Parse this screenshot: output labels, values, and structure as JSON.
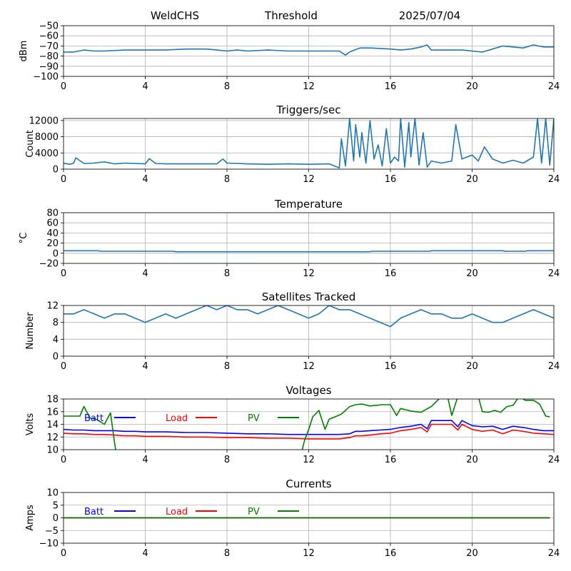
{
  "header": {
    "site": "WeldCHS",
    "mode": "Threshold",
    "date": "2025/07/04"
  },
  "chart_data": [
    {
      "type": "line",
      "title": "",
      "ylabel": "dBm",
      "xlim": [
        0,
        24
      ],
      "xticks": [
        0,
        4,
        8,
        12,
        16,
        20,
        24
      ],
      "ylim": [
        -100,
        -50
      ],
      "yticks": [
        -100,
        -90,
        -80,
        -70,
        -60,
        -50
      ],
      "grid": true,
      "series": [
        {
          "color": "#1f77b4",
          "x": [
            0,
            0.5,
            1,
            1.5,
            2,
            3,
            4,
            5,
            6,
            7,
            7.5,
            8,
            8.5,
            9,
            10,
            11,
            12,
            13,
            13.5,
            13.8,
            14,
            14.5,
            15,
            16,
            16.5,
            17,
            17.5,
            17.8,
            18,
            19,
            19.5,
            20,
            20.5,
            21,
            21.5,
            22,
            22.5,
            23,
            23.5,
            24
          ],
          "y": [
            -76,
            -76,
            -74,
            -75,
            -75,
            -74,
            -74,
            -74,
            -73,
            -73,
            -74,
            -75,
            -74,
            -75,
            -74,
            -75,
            -75,
            -75,
            -75,
            -79,
            -76,
            -72,
            -72,
            -73,
            -74,
            -73,
            -71,
            -69,
            -74,
            -74,
            -74,
            -75,
            -76,
            -73,
            -70,
            -71,
            -72,
            -69,
            -71,
            -71
          ]
        }
      ]
    },
    {
      "type": "line",
      "title": "Triggers/sec",
      "ylabel": "Count",
      "xlim": [
        0,
        24
      ],
      "xticks": [
        0,
        4,
        8,
        12,
        16,
        20,
        24
      ],
      "ylim": [
        0,
        12500
      ],
      "yticks": [
        0,
        4000,
        8000,
        12000
      ],
      "grid": true,
      "series": [
        {
          "color": "#1f77b4",
          "x": [
            0,
            0.3,
            0.5,
            0.6,
            1,
            1.5,
            2,
            2.5,
            3,
            3.5,
            4,
            4.2,
            4.5,
            5,
            6,
            7,
            7.5,
            7.8,
            8,
            8.5,
            9,
            10,
            11,
            12,
            13,
            13.5,
            13.6,
            13.8,
            14,
            14.2,
            14.3,
            14.5,
            14.6,
            14.8,
            15,
            15.2,
            15.4,
            15.6,
            15.8,
            16,
            16.2,
            16.4,
            16.5,
            16.7,
            16.9,
            17,
            17.2,
            17.4,
            17.6,
            17.8,
            18,
            18.5,
            19,
            19.2,
            19.5,
            20,
            20.3,
            20.6,
            21,
            21.5,
            22,
            22.5,
            23,
            23.2,
            23.4,
            23.6,
            23.8,
            24
          ],
          "y": [
            1500,
            1200,
            1500,
            2800,
            1400,
            1500,
            1800,
            1300,
            1500,
            1400,
            1300,
            2600,
            1400,
            1300,
            1300,
            1300,
            1300,
            2500,
            1500,
            1400,
            1300,
            1200,
            1300,
            1200,
            1300,
            300,
            7500,
            800,
            12500,
            2000,
            11000,
            3000,
            9000,
            1500,
            12000,
            2500,
            6000,
            800,
            10000,
            1500,
            3000,
            2000,
            12500,
            500,
            11500,
            3000,
            12500,
            1000,
            9000,
            500,
            2000,
            1500,
            2000,
            11000,
            2500,
            3500,
            2000,
            5500,
            2500,
            1500,
            2200,
            1500,
            3000,
            12500,
            1500,
            12500,
            1000,
            12500
          ]
        }
      ]
    },
    {
      "type": "line",
      "title": "Temperature",
      "ylabel": "°C",
      "xlim": [
        0,
        24
      ],
      "xticks": [
        0,
        4,
        8,
        12,
        16,
        20,
        24
      ],
      "ylim": [
        -20,
        80
      ],
      "yticks": [
        -20,
        0,
        20,
        40,
        60,
        80
      ],
      "grid": true,
      "series": [
        {
          "color": "#1f77b4",
          "x": [
            0,
            1.7,
            1.8,
            5.4,
            5.5,
            15,
            15.1,
            17.9,
            18,
            21.5,
            21.6,
            22.6,
            22.7,
            24
          ],
          "y": [
            5,
            5,
            4,
            4,
            3,
            3,
            4,
            4,
            5,
            5,
            4,
            4,
            5,
            5
          ]
        }
      ]
    },
    {
      "type": "line",
      "title": "Satellites Tracked",
      "ylabel": "Number",
      "xlim": [
        0,
        24
      ],
      "xticks": [
        0,
        4,
        8,
        12,
        16,
        20,
        24
      ],
      "ylim": [
        0,
        12
      ],
      "yticks": [
        0,
        4,
        8,
        12
      ],
      "grid": true,
      "series": [
        {
          "color": "#1f77b4",
          "x": [
            0,
            0.5,
            1,
            1.5,
            2,
            2.5,
            3,
            3.5,
            4,
            4.5,
            5,
            5.5,
            6,
            6.5,
            7,
            7.5,
            8,
            8.5,
            9,
            9.5,
            10,
            10.5,
            11,
            11.5,
            12,
            12.5,
            13,
            13.5,
            14,
            14.5,
            15,
            15.5,
            16,
            16.5,
            17,
            17.5,
            18,
            18.5,
            19,
            19.5,
            20,
            20.5,
            21,
            21.5,
            22,
            22.5,
            23,
            23.5,
            24
          ],
          "y": [
            10,
            10,
            11,
            10,
            9,
            10,
            10,
            9,
            8,
            9,
            10,
            9,
            10,
            11,
            12,
            11,
            12,
            11,
            11,
            10,
            11,
            12,
            11,
            10,
            9,
            10,
            12,
            11,
            11,
            10,
            9,
            8,
            7,
            9,
            10,
            11,
            10,
            10,
            9,
            9,
            10,
            9,
            8,
            8,
            9,
            10,
            11,
            10,
            9
          ]
        }
      ]
    },
    {
      "type": "line",
      "title": "Voltages",
      "ylabel": "Volts",
      "xlim": [
        0,
        24
      ],
      "xticks": [
        0,
        4,
        8,
        12,
        16,
        20,
        24
      ],
      "ylim": [
        10,
        18
      ],
      "yticks": [
        10,
        12,
        14,
        16,
        18
      ],
      "grid": true,
      "legend": {
        "placement": "upper-left",
        "orientation": "horizontal"
      },
      "series": [
        {
          "name": "Batt",
          "color": "#0000ff",
          "x": [
            0,
            0.5,
            1,
            1.5,
            2,
            2.5,
            3,
            3.5,
            4,
            5,
            6,
            7,
            8,
            9,
            10,
            11,
            12,
            13,
            13.5,
            14,
            14.3,
            14.6,
            15,
            15.5,
            16,
            16.5,
            17,
            17.5,
            17.8,
            18,
            18.5,
            19,
            19.3,
            19.5,
            20,
            20.5,
            21,
            21.5,
            22,
            22.5,
            23,
            23.5,
            24
          ],
          "y": [
            13.2,
            13.1,
            13.1,
            13.0,
            13.0,
            13.0,
            12.9,
            12.9,
            12.8,
            12.8,
            12.7,
            12.7,
            12.6,
            12.5,
            12.5,
            12.4,
            12.4,
            12.4,
            12.4,
            12.5,
            12.9,
            12.9,
            13.0,
            13.1,
            13.2,
            13.5,
            13.7,
            14.0,
            13.3,
            14.6,
            14.6,
            14.6,
            13.6,
            14.6,
            13.8,
            13.6,
            13.7,
            13.2,
            13.7,
            13.5,
            13.2,
            13.0,
            13.0
          ]
        },
        {
          "name": "Load",
          "color": "#ff0000",
          "x": [
            0,
            0.5,
            1,
            1.5,
            2,
            2.5,
            3,
            3.5,
            4,
            5,
            6,
            7,
            8,
            9,
            10,
            11,
            12,
            13,
            13.5,
            14,
            14.3,
            14.6,
            15,
            15.5,
            16,
            16.5,
            17,
            17.5,
            17.8,
            18,
            18.5,
            19,
            19.3,
            19.5,
            20,
            20.5,
            21,
            21.5,
            22,
            22.5,
            23,
            23.5,
            24
          ],
          "y": [
            12.6,
            12.5,
            12.5,
            12.4,
            12.4,
            12.3,
            12.2,
            12.2,
            12.1,
            12.1,
            12.0,
            12.0,
            11.9,
            11.9,
            11.8,
            11.8,
            11.7,
            11.7,
            11.7,
            11.9,
            12.2,
            12.2,
            12.3,
            12.5,
            12.6,
            13.0,
            13.2,
            13.5,
            12.8,
            14.0,
            14.0,
            14.0,
            13.1,
            14.0,
            13.2,
            12.9,
            13.1,
            12.5,
            13.1,
            12.9,
            12.6,
            12.5,
            12.4
          ]
        },
        {
          "name": "PV",
          "color": "#008000",
          "x": [
            0,
            0.5,
            0.8,
            1,
            1.3,
            1.6,
            2,
            2.3,
            2.5,
            2.6,
            11.6,
            11.8,
            12,
            12.2,
            12.5,
            12.8,
            13,
            13.3,
            13.6,
            14,
            14.3,
            14.6,
            15,
            15.3,
            15.6,
            16,
            16.3,
            16.5,
            17,
            17.5,
            18,
            18.5,
            18.8,
            19,
            19.3,
            19.6,
            20,
            20.3,
            20.5,
            20.8,
            21.1,
            21.4,
            21.7,
            22,
            22.3,
            22.6,
            23,
            23.3,
            23.6,
            23.8
          ],
          "y": [
            15.3,
            15.3,
            15.3,
            16.8,
            15.0,
            14.8,
            14.0,
            15.8,
            11.0,
            9.0,
            9.0,
            11.5,
            13.2,
            15.2,
            16.2,
            13.2,
            14.8,
            15.2,
            15.6,
            16.8,
            17.1,
            17.2,
            16.9,
            17.0,
            17.1,
            17.1,
            15.4,
            16.5,
            16.1,
            15.9,
            16.8,
            18.4,
            18.4,
            15.4,
            18.4,
            18.4,
            18.4,
            18.4,
            16.0,
            15.9,
            16.2,
            15.9,
            16.8,
            17.0,
            18.4,
            17.8,
            17.8,
            17.2,
            15.3,
            15.2
          ]
        }
      ]
    },
    {
      "type": "line",
      "title": "Currents",
      "ylabel": "Amps",
      "xlim": [
        0,
        24
      ],
      "xticks": [
        0,
        4,
        8,
        12,
        16,
        20,
        24
      ],
      "ylim": [
        -10,
        10
      ],
      "yticks": [
        -10,
        -5,
        0,
        5,
        10
      ],
      "grid": true,
      "legend": {
        "placement": "upper-left",
        "orientation": "horizontal"
      },
      "series": [
        {
          "name": "Batt",
          "color": "#0000ff",
          "x": [
            0,
            23.8
          ],
          "y": [
            0,
            0
          ]
        },
        {
          "name": "Load",
          "color": "#ff0000",
          "x": [
            0,
            23.8
          ],
          "y": [
            0,
            0
          ]
        },
        {
          "name": "PV",
          "color": "#008000",
          "x": [
            0,
            23.8
          ],
          "y": [
            0,
            0
          ]
        }
      ]
    }
  ]
}
